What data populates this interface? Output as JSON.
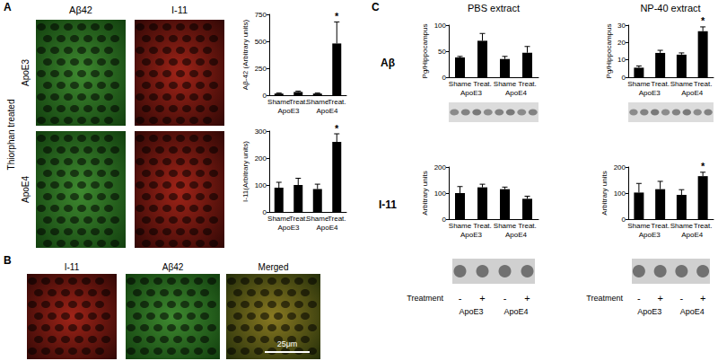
{
  "panel_a": {
    "label": "A",
    "side_label": "Thiorphan treated",
    "columns": [
      "Aβ42",
      "I-11"
    ],
    "rows": [
      "ApoE3",
      "ApoE4"
    ]
  },
  "panel_b": {
    "label": "B",
    "columns": [
      "I-11",
      "Aβ42",
      "Merged"
    ],
    "scale_bar": "25μm"
  },
  "panel_c": {
    "label": "C",
    "columns": [
      "PBS extract",
      "NP-40 extract"
    ],
    "rows": [
      "Aβ",
      "I-11"
    ],
    "blot_treatment_label": "Treatment",
    "blot_signs": [
      "-",
      "+",
      "-",
      "+"
    ],
    "blot_groups": [
      "ApoE3",
      "ApoE4"
    ]
  },
  "chart_data": [
    {
      "type": "bar",
      "y_label": "Aβ-42 (Arbitrary units)",
      "categories": [
        "Shame",
        "Treat.",
        "Shame",
        "Treat."
      ],
      "groups": [
        "ApoE3",
        "ApoE4"
      ],
      "values": [
        15,
        30,
        15,
        480
      ],
      "errors": [
        5,
        8,
        5,
        200
      ],
      "significance": [
        null,
        null,
        null,
        "*"
      ],
      "color": "#000000",
      "ylim": [
        0,
        750
      ],
      "yticks": [
        0,
        250,
        500,
        750
      ],
      "grid": false
    },
    {
      "type": "bar",
      "y_label": "I-11(Arbitrary units)",
      "categories": [
        "Shame",
        "Treat.",
        "Shame",
        "Treat."
      ],
      "groups": [
        "ApoE3",
        "ApoE4"
      ],
      "values": [
        90,
        100,
        85,
        260
      ],
      "errors": [
        20,
        25,
        18,
        30
      ],
      "significance": [
        null,
        null,
        null,
        "*"
      ],
      "color": "#000000",
      "ylim": [
        0,
        300
      ],
      "yticks": [
        0,
        100,
        200,
        300
      ],
      "grid": false
    },
    {
      "type": "bar",
      "y_label": "Pg/Hippocampus",
      "categories": [
        "Shame",
        "Treat.",
        "Shame",
        "Treat."
      ],
      "groups": [
        "ApoE3",
        "ApoE4"
      ],
      "values": [
        38,
        70,
        35,
        47
      ],
      "errors": [
        2,
        14,
        5,
        12
      ],
      "significance": [
        null,
        null,
        null,
        null
      ],
      "color": "#000000",
      "ylim": [
        0,
        100
      ],
      "yticks": [
        0,
        50,
        100
      ],
      "grid": false
    },
    {
      "type": "bar",
      "y_label": "Pg/Hippocampus",
      "categories": [
        "Shame",
        "Treat.",
        "Shame",
        "Treat."
      ],
      "groups": [
        "ApoE3",
        "ApoE4"
      ],
      "values": [
        5.5,
        14,
        13,
        26.5
      ],
      "errors": [
        1,
        1.5,
        1,
        2.5
      ],
      "significance": [
        null,
        null,
        null,
        "*"
      ],
      "color": "#000000",
      "ylim": [
        0,
        30
      ],
      "yticks": [
        0,
        10,
        20,
        30
      ],
      "grid": false
    },
    {
      "type": "bar",
      "y_label": "Arbitrary units",
      "categories": [
        "Shame",
        "Treat.",
        "Shame",
        "Treat."
      ],
      "groups": [
        "ApoE3",
        "ApoE4"
      ],
      "values": [
        100,
        122,
        115,
        78
      ],
      "errors": [
        25,
        12,
        8,
        10
      ],
      "significance": [
        null,
        null,
        null,
        null
      ],
      "color": "#000000",
      "ylim": [
        0,
        200
      ],
      "yticks": [
        0,
        100,
        200
      ],
      "grid": false
    },
    {
      "type": "bar",
      "y_label": "Arbitrary units",
      "categories": [
        "Shame",
        "Treat.",
        "Shame",
        "Treat."
      ],
      "groups": [
        "ApoE3",
        "ApoE4"
      ],
      "values": [
        102,
        115,
        93,
        165
      ],
      "errors": [
        35,
        30,
        20,
        15
      ],
      "significance": [
        null,
        null,
        null,
        "*"
      ],
      "color": "#000000",
      "ylim": [
        0,
        200
      ],
      "yticks": [
        0,
        100,
        200
      ],
      "grid": false
    }
  ]
}
